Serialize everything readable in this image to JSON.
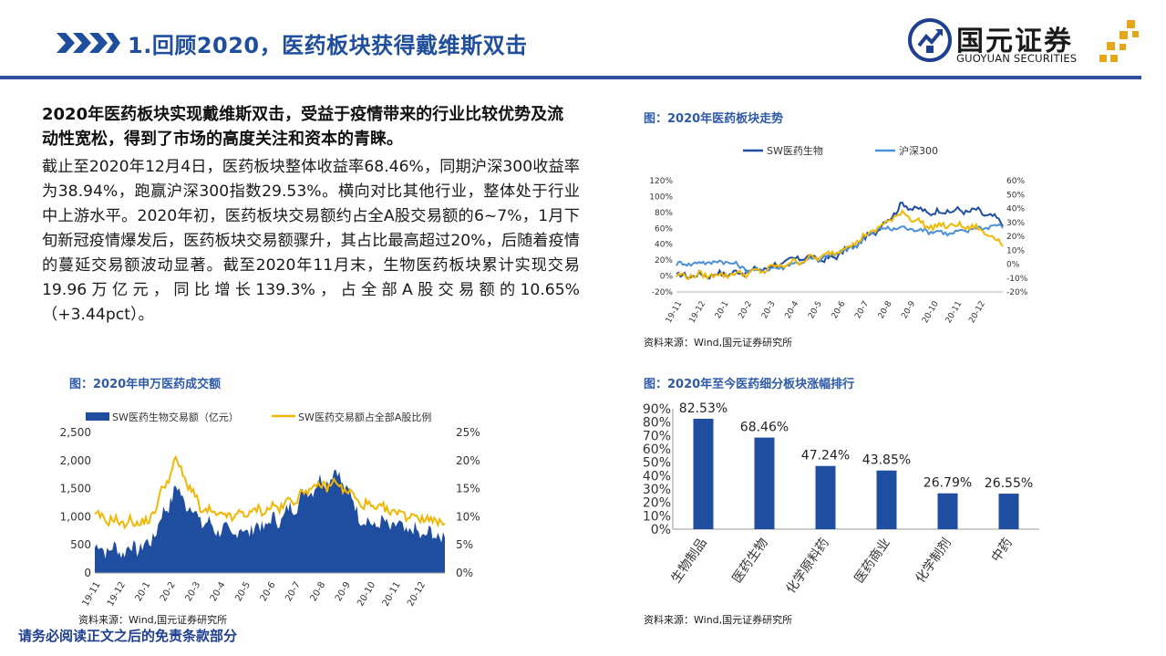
{
  "header": {
    "title": "1.回顾2020，医药板块获得戴维斯双击",
    "logo_cn": "国元证券",
    "logo_en": "GUOYUAN SECURITIES",
    "accent": "#1f4e9c"
  },
  "text": {
    "lead": "2020年医药板块实现戴维斯双击，受益于疫情带来的行业比较优势及流动性宽松，得到了市场的高度关注和资本的青睐。",
    "body": "截止至2020年12月4日，医药板块整体收益率68.46%，同期沪深300收益率为38.94%，跑赢沪深300指数29.53%。横向对比其他行业，整体处于行业中上游水平。2020年初，医药板块交易额约占全A股交易额的6~7%，1月下旬新冠疫情爆发后，医药板块交易额骤升，其占比最高超过20%，后随着疫情的蔓延交易额波动显著。截至2020年11月末，生物医药板块累计实现交易19.96万亿元，同比增长139.3%，占全部A股交易额的10.65%（+3.44pct）。"
  },
  "captions": {
    "trend": "图：2020年医药板块走势",
    "ranking": "图：2020年至今医药细分板块涨幅排行",
    "volume": "图：2020年申万医药成交额",
    "source_trend": "资料来源：Wind,国元证券研究所",
    "source_ranking": "资料来源：Wind,国元证券研究所",
    "source_volume": "资料来源：Wind,国元证券研究所"
  },
  "footer": "请务必阅读正文之后的免责条款部分",
  "chart_data": [
    {
      "id": "trend",
      "type": "line",
      "x": [
        "19-11",
        "19-12",
        "20-1",
        "20-2",
        "20-3",
        "20-4",
        "20-5",
        "20-6",
        "20-7",
        "20-8",
        "20-9",
        "20-10",
        "20-11",
        "20-12"
      ],
      "series": [
        {
          "name": "SW医药生物",
          "axis": "left",
          "color": "#1f4ea0",
          "values": [
            0,
            1,
            3,
            6,
            14,
            24,
            20,
            36,
            58,
            90,
            80,
            82,
            82,
            68
          ]
        },
        {
          "name": "沪深300",
          "axis": "right",
          "color": "#4a8fd8",
          "values": [
            0,
            1,
            2,
            -5,
            -3,
            2,
            5,
            12,
            25,
            26,
            24,
            22,
            26,
            28
          ]
        },
        {
          "name": "",
          "axis": "left",
          "color": "#f2b705",
          "values": [
            0,
            1,
            2,
            4,
            12,
            20,
            26,
            40,
            60,
            80,
            62,
            64,
            60,
            42
          ]
        }
      ],
      "ylim_left": [
        -20,
        120
      ],
      "yticks_left": [
        "120%",
        "100%",
        "80%",
        "60%",
        "40%",
        "20%",
        "0%",
        "-20%"
      ],
      "ylim_right": [
        -20,
        60
      ],
      "yticks_right": [
        "60%",
        "50%",
        "40%",
        "30%",
        "20%",
        "10%",
        "0%",
        "-10%",
        "-20%"
      ],
      "legend": "top"
    },
    {
      "id": "ranking",
      "type": "bar",
      "categories": [
        "生物制品",
        "医药生物",
        "化学原料药",
        "医药商业",
        "化学制剂",
        "中药"
      ],
      "values": [
        82.53,
        68.46,
        47.24,
        43.85,
        26.79,
        26.55
      ],
      "labels": [
        "82.53%",
        "68.46%",
        "47.24%",
        "43.85%",
        "26.79%",
        "26.55%"
      ],
      "color": "#1f4ea0",
      "ylim": [
        0,
        90
      ],
      "yticks": [
        "90%",
        "80%",
        "70%",
        "60%",
        "50%",
        "40%",
        "30%",
        "20%",
        "10%",
        "0%"
      ]
    },
    {
      "id": "volume",
      "type": "area",
      "x": [
        "19-11",
        "19-12",
        "20-1",
        "20-2",
        "20-3",
        "20-4",
        "20-5",
        "20-6",
        "20-7",
        "20-8",
        "20-9",
        "20-10",
        "20-11",
        "20-12"
      ],
      "series": [
        {
          "name": "SW医药生物交易额（亿元）",
          "axis": "left",
          "kind": "area",
          "color": "#1f4ea0",
          "values": [
            450,
            400,
            500,
            1500,
            900,
            700,
            800,
            1000,
            1500,
            1800,
            900,
            850,
            700,
            650
          ]
        },
        {
          "name": "SW医药交易额占全部A股比例",
          "axis": "right",
          "kind": "line",
          "color": "#f2b705",
          "values": [
            10,
            9,
            9,
            20,
            11,
            10,
            11,
            12,
            15,
            16,
            12,
            11,
            10,
            9
          ]
        }
      ],
      "ylim_left": [
        0,
        2500
      ],
      "yticks_left": [
        "2,500",
        "2,000",
        "1,500",
        "1,000",
        "500",
        "0"
      ],
      "ylim_right": [
        0,
        25
      ],
      "yticks_right": [
        "25%",
        "20%",
        "15%",
        "10%",
        "5%",
        "0%"
      ],
      "legend": "top"
    }
  ]
}
